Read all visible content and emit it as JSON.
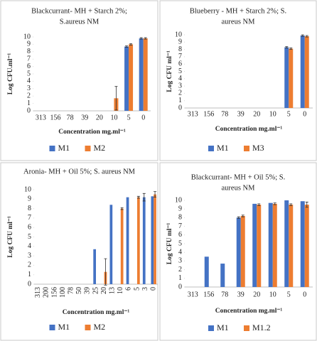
{
  "chart_data": [
    {
      "type": "bar",
      "title": [
        "Blackcurrant- MH + Starch 2%;",
        "S.aureus NM"
      ],
      "y_label": "Log CFU.ml⁻¹",
      "x_label": "Concentration mg.ml⁻¹",
      "categories": [
        "313",
        "156",
        "78",
        "39",
        "20",
        "10",
        "5",
        "0"
      ],
      "series": [
        {
          "name": "M1",
          "color": "#4472c4",
          "values": [
            null,
            null,
            null,
            null,
            null,
            null,
            8.7,
            9.8
          ],
          "errors": [
            null,
            null,
            null,
            null,
            null,
            null,
            0.1,
            0.1
          ]
        },
        {
          "name": "M2",
          "color": "#ed7d31",
          "values": [
            null,
            null,
            null,
            null,
            null,
            1.7,
            9.0,
            9.8
          ],
          "errors": [
            null,
            null,
            null,
            null,
            null,
            1.6,
            0.1,
            0.1
          ]
        }
      ],
      "ylim": [
        0,
        10
      ],
      "yticks": [
        0,
        1,
        2,
        3,
        4,
        5,
        6,
        7,
        8,
        9,
        10
      ]
    },
    {
      "type": "bar",
      "title": [
        "Blueberry - MH + Starch 2%; S.",
        "aureus NM"
      ],
      "y_label": "Log CFU ml⁻¹",
      "x_label": "Concentration mg.ml⁻¹",
      "categories": [
        "313",
        "156",
        "78",
        "39",
        "20",
        "10",
        "5",
        "0"
      ],
      "series": [
        {
          "name": "M1",
          "color": "#4472c4",
          "values": [
            null,
            null,
            null,
            null,
            null,
            null,
            8.3,
            9.9
          ],
          "errors": [
            null,
            null,
            null,
            null,
            null,
            null,
            0.1,
            0.1
          ]
        },
        {
          "name": "M3",
          "color": "#ed7d31",
          "values": [
            null,
            null,
            null,
            null,
            null,
            null,
            8.1,
            9.8
          ],
          "errors": [
            null,
            null,
            null,
            null,
            null,
            null,
            0.1,
            0.1
          ]
        }
      ],
      "ylim": [
        0,
        10
      ],
      "yticks": [
        0,
        1,
        2,
        3,
        4,
        5,
        6,
        7,
        8,
        9,
        10
      ]
    },
    {
      "type": "bar",
      "title": [
        "Aronia- MH + Oil 5%; S. aureus NM"
      ],
      "y_label": "Log CFU ml⁻¹",
      "x_label": "Concentration mg.ml⁻¹",
      "categories": [
        "313",
        "200",
        "156",
        "100",
        "78",
        "50",
        "39",
        "25",
        "20",
        "13",
        "10",
        "6",
        "5",
        "3",
        "0"
      ],
      "x_label_rotation": -90,
      "series": [
        {
          "name": "M1",
          "color": "#4472c4",
          "values": [
            null,
            null,
            null,
            null,
            null,
            null,
            null,
            3.7,
            null,
            8.4,
            null,
            9.2,
            null,
            9.2,
            9.3
          ],
          "errors": [
            null,
            null,
            null,
            null,
            null,
            null,
            null,
            null,
            null,
            null,
            null,
            null,
            null,
            0.4,
            null
          ]
        },
        {
          "name": "M2",
          "color": "#ed7d31",
          "values": [
            null,
            null,
            null,
            null,
            null,
            null,
            null,
            null,
            1.3,
            null,
            8.0,
            null,
            9.2,
            null,
            9.5
          ],
          "errors": [
            null,
            null,
            null,
            null,
            null,
            null,
            null,
            null,
            1.4,
            null,
            0.1,
            null,
            0.1,
            null,
            0.3
          ]
        }
      ],
      "ylim": [
        0,
        10
      ],
      "yticks": [
        0,
        1,
        2,
        3,
        4,
        5,
        6,
        7,
        8,
        9,
        10
      ]
    },
    {
      "type": "bar",
      "title": [
        "Blackcurrant- MH + Oil 5%; S.",
        "aureus NM"
      ],
      "y_label": "Log CFU ml⁻¹",
      "x_label": "Concentration mg.ml⁻¹",
      "categories": [
        "313",
        "156",
        "78",
        "39",
        "20",
        "10",
        "5",
        "0"
      ],
      "series": [
        {
          "name": "M1",
          "color": "#4472c4",
          "values": [
            null,
            3.5,
            2.7,
            8.0,
            9.6,
            9.7,
            10.0,
            9.9
          ],
          "errors": [
            null,
            null,
            null,
            0.1,
            null,
            null,
            null,
            null
          ]
        },
        {
          "name": "M1.2",
          "color": "#ed7d31",
          "values": [
            null,
            null,
            null,
            8.2,
            9.5,
            9.6,
            9.5,
            9.5
          ],
          "errors": [
            null,
            null,
            null,
            0.1,
            0.1,
            0.1,
            0.1,
            0.3
          ]
        }
      ],
      "ylim": [
        0,
        10
      ],
      "yticks": [
        0,
        1,
        2,
        3,
        4,
        5,
        6,
        7,
        8,
        9,
        10
      ]
    }
  ]
}
